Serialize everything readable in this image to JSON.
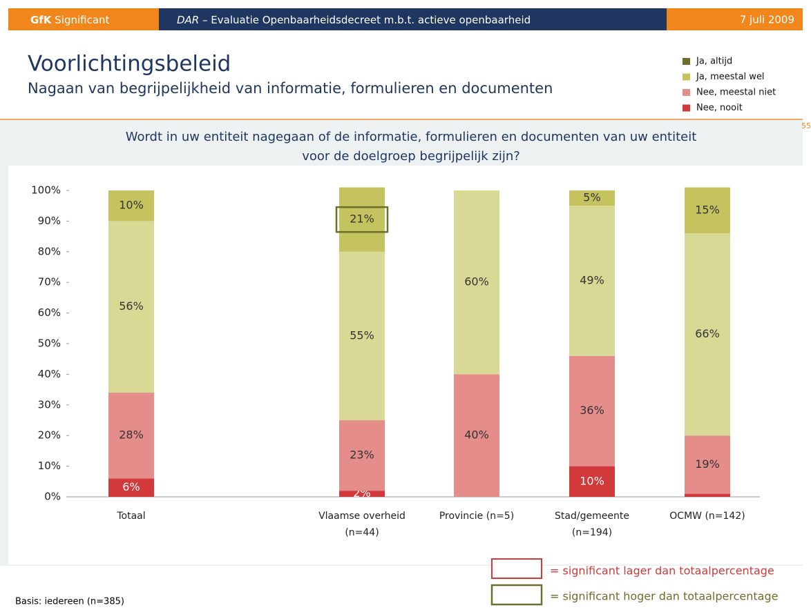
{
  "header": {
    "brand_bold": "GfK",
    "brand": "Significant",
    "project_code": "DAR",
    "project": "– Evaluatie Openbaarheidsdecreet m.b.t. actieve openbaarheid",
    "date": "7 juli 2009"
  },
  "title": "Voorlichtingsbeleid",
  "subtitle": "Nagaan van begrijpelijkheid van informatie, formulieren en documenten",
  "page_number": "55",
  "chart_data": {
    "type": "stacked_bar",
    "title": [
      "Wordt in uw entiteit  nagegaan of de informatie, formulieren en  documenten van uw entiteit",
      "voor de doelgroep begrijpelijk zijn?"
    ],
    "categories": [
      [
        "Totaal"
      ],
      null,
      [
        "Vlaamse overheid",
        "(n=44)"
      ],
      [
        "Provincie (n=5)"
      ],
      [
        "Stad/gemeente",
        "(n=194)"
      ],
      [
        "OCMW (n=142)"
      ]
    ],
    "series": [
      {
        "name": "Ja, altijd",
        "color": "#c4c35f",
        "legend_color": "#6e6e2c",
        "label_color": "#333333",
        "values": [
          10,
          null,
          21,
          0,
          5,
          15
        ],
        "value_labels": [
          "10%",
          null,
          "21%",
          null,
          "5%",
          "15%"
        ]
      },
      {
        "name": "Ja, meestal wel",
        "color": "#d9d996",
        "legend_color": "#c4c35f",
        "label_color": "#333333",
        "values": [
          56,
          null,
          55,
          60,
          49,
          66
        ],
        "value_labels": [
          "56%",
          null,
          "55%",
          "60%",
          "49%",
          "66%"
        ]
      },
      {
        "name": "Nee, meestal niet",
        "color": "#e48d8b",
        "legend_color": "#e48d8b",
        "label_color": "#333333",
        "values": [
          28,
          null,
          23,
          40,
          36,
          19
        ],
        "value_labels": [
          "28%",
          null,
          "23%",
          "40%",
          "36%",
          "19%"
        ]
      },
      {
        "name": "Nee, nooit",
        "color": "#d2393a",
        "legend_color": "#d2393a",
        "label_color": "#ffffff",
        "values": [
          6,
          null,
          2,
          0,
          10,
          1
        ],
        "value_labels": [
          "6%",
          null,
          "2%",
          null,
          "10%",
          null
        ]
      }
    ],
    "ylim": [
      0,
      100
    ],
    "yticks": [
      {
        "value": 0,
        "label": "0%"
      },
      {
        "value": 10,
        "label": "10%"
      },
      {
        "value": 20,
        "label": "20%"
      },
      {
        "value": 30,
        "label": "30%"
      },
      {
        "value": 40,
        "label": "40%"
      },
      {
        "value": 50,
        "label": "50%"
      },
      {
        "value": 60,
        "label": "60%"
      },
      {
        "value": 70,
        "label": "70%"
      },
      {
        "value": 80,
        "label": "80%"
      },
      {
        "value": 90,
        "label": "90%"
      },
      {
        "value": 100,
        "label": "100%"
      }
    ],
    "significant_higher": [
      {
        "series": 0,
        "category": 2
      }
    ],
    "significance_legend": {
      "lower": "= significant lager dan totaalpercentage",
      "lower_color": "#d2393a",
      "higher": "= significant hoger dan totaalpercentage",
      "higher_color": "#6e6e2c"
    },
    "note": "Basis: iedereen (n=385)"
  }
}
